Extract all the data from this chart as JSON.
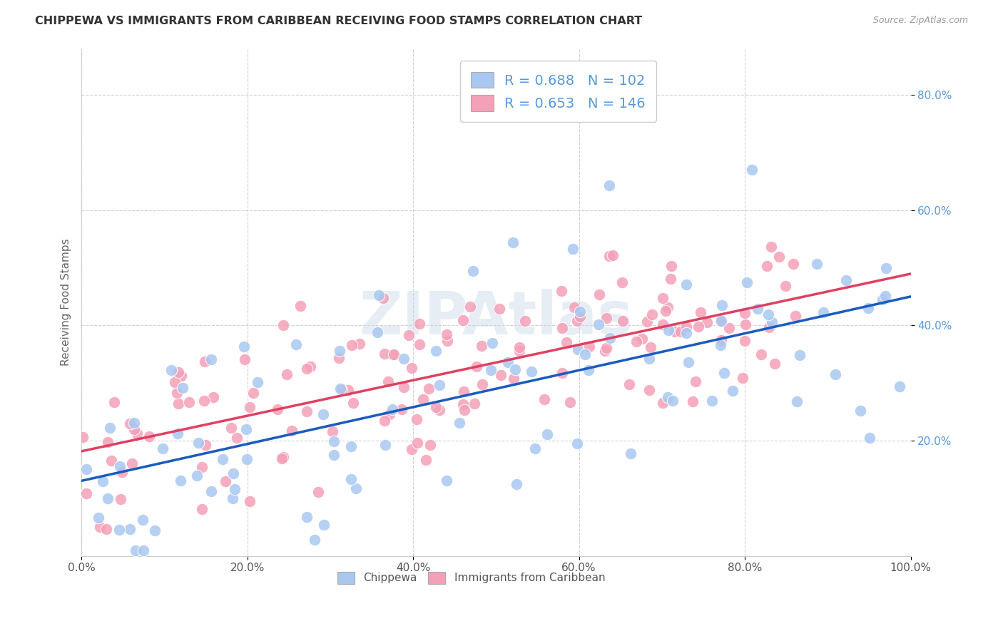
{
  "title": "CHIPPEWA VS IMMIGRANTS FROM CARIBBEAN RECEIVING FOOD STAMPS CORRELATION CHART",
  "source": "Source: ZipAtlas.com",
  "ylabel": "Receiving Food Stamps",
  "yticks": [
    "20.0%",
    "40.0%",
    "60.0%",
    "80.0%"
  ],
  "ytick_vals": [
    0.2,
    0.4,
    0.6,
    0.8
  ],
  "xlim": [
    0.0,
    1.0
  ],
  "ylim": [
    0.0,
    0.88
  ],
  "chippewa_color": "#a8c8f0",
  "caribbean_color": "#f4a0b8",
  "chippewa_line_color": "#1a5bbf",
  "caribbean_line_color": "#e04060",
  "watermark": "ZIPAtlas",
  "chippewa_R": 0.688,
  "chippewa_N": 102,
  "caribbean_R": 0.653,
  "caribbean_N": 146,
  "chippewa_seed": 42,
  "caribbean_seed": 7
}
